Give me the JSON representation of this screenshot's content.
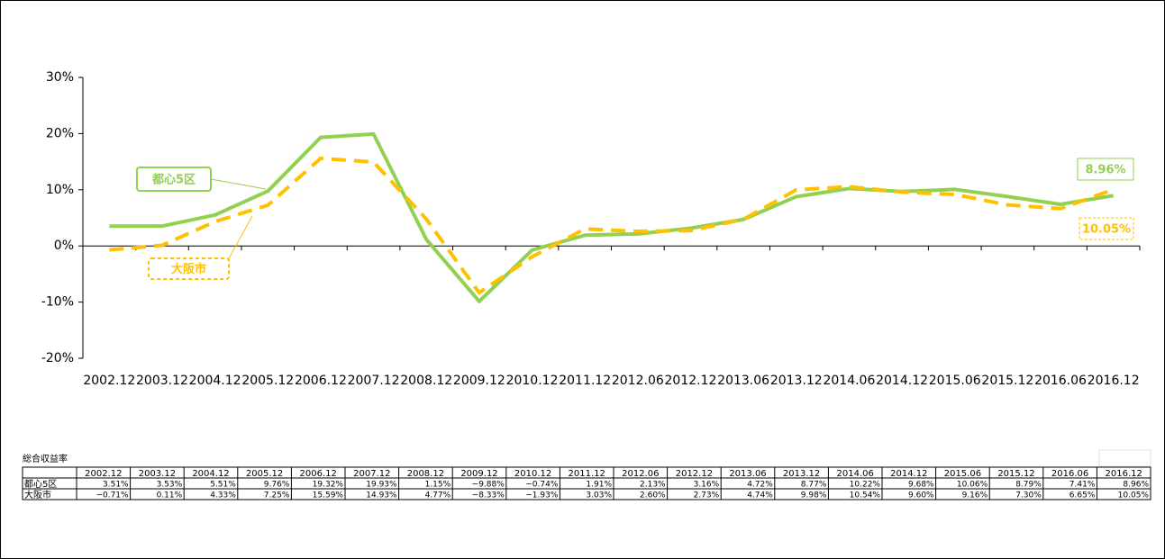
{
  "chart_data": {
    "type": "line",
    "categories": [
      "2002.12",
      "2003.12",
      "2004.12",
      "2005.12",
      "2006.12",
      "2007.12",
      "2008.12",
      "2009.12",
      "2010.12",
      "2011.12",
      "2012.06",
      "2012.12",
      "2013.06",
      "2013.12",
      "2014.06",
      "2014.12",
      "2015.06",
      "2015.12",
      "2016.06",
      "2016.12"
    ],
    "series": [
      {
        "name": "都心5区",
        "color": "#92d050",
        "line_style": "solid",
        "values": [
          3.51,
          3.53,
          5.51,
          9.76,
          19.32,
          19.93,
          1.15,
          -9.88,
          -0.74,
          1.91,
          2.13,
          3.16,
          4.72,
          8.77,
          10.22,
          9.68,
          10.06,
          8.79,
          7.41,
          8.96
        ],
        "value_labels": [
          "3.51%",
          "3.53%",
          "5.51%",
          "9.76%",
          "19.32%",
          "19.93%",
          "1.15%",
          "−9.88%",
          "−0.74%",
          "1.91%",
          "2.13%",
          "3.16%",
          "4.72%",
          "8.77%",
          "10.22%",
          "9.68%",
          "10.06%",
          "8.79%",
          "7.41%",
          "8.96%"
        ]
      },
      {
        "name": "大阪市",
        "color": "#ffc000",
        "line_style": "dashed",
        "values": [
          -0.71,
          0.11,
          4.33,
          7.25,
          15.59,
          14.93,
          4.77,
          -8.33,
          -1.93,
          3.03,
          2.6,
          2.73,
          4.74,
          9.98,
          10.54,
          9.6,
          9.16,
          7.3,
          6.65,
          10.05
        ],
        "value_labels": [
          "−0.71%",
          "0.11%",
          "4.33%",
          "7.25%",
          "15.59%",
          "14.93%",
          "4.77%",
          "−8.33%",
          "−1.93%",
          "3.03%",
          "2.60%",
          "2.73%",
          "4.74%",
          "9.98%",
          "10.54%",
          "9.60%",
          "9.16%",
          "7.30%",
          "6.65%",
          "10.05%"
        ]
      }
    ],
    "ylim": [
      -20,
      30
    ],
    "yticks": [
      {
        "value": -20,
        "label": "-20%"
      },
      {
        "value": -10,
        "label": "-10%"
      },
      {
        "value": 0,
        "label": "0%"
      },
      {
        "value": 10,
        "label": "10%"
      },
      {
        "value": 20,
        "label": "20%"
      },
      {
        "value": 30,
        "label": "30%"
      }
    ],
    "table_title": "総合収益率"
  }
}
